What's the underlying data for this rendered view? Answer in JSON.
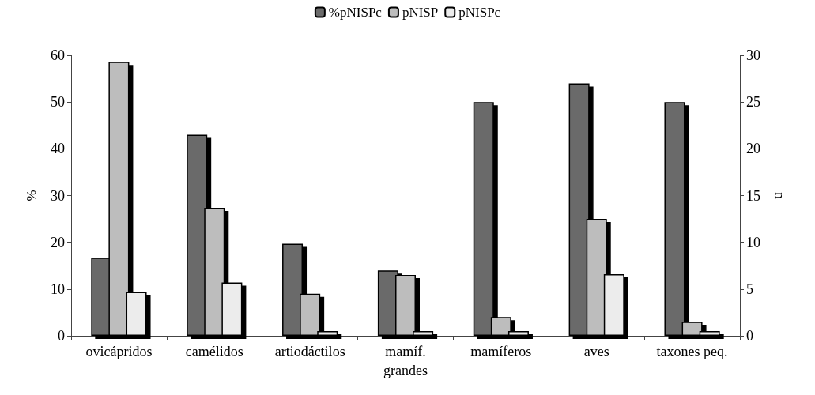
{
  "chart_data": {
    "type": "bar",
    "ylabel": "%",
    "y2label": "n",
    "categories": [
      "ovicápridos",
      "camélidos",
      "artiodáctilos",
      "mamíf.\ngrandes",
      "mamíferos",
      "aves",
      "taxones peq."
    ],
    "series": [
      {
        "name": "%pNISPc",
        "color": "#6b6b6b",
        "values": [
          16.7,
          43,
          19.7,
          14,
          50,
          54,
          50
        ]
      },
      {
        "name": "pNISP",
        "color": "#bdbdbd",
        "axis": "y2",
        "values": [
          29.3,
          13.7,
          4.5,
          6.5,
          2,
          12.5,
          1.5
        ]
      },
      {
        "name": "pNISPc",
        "color": "#ececec",
        "axis": "y2",
        "values": [
          4.7,
          5.7,
          0.5,
          0.5,
          0.5,
          6.6,
          0.5
        ]
      }
    ],
    "ylim": [
      0,
      60
    ],
    "yticks": [
      0,
      10,
      20,
      30,
      40,
      50,
      60
    ],
    "y2lim": [
      0,
      30
    ],
    "y2ticks": [
      0,
      5,
      10,
      15,
      20,
      25,
      30
    ],
    "grid": false,
    "legend": "top"
  }
}
